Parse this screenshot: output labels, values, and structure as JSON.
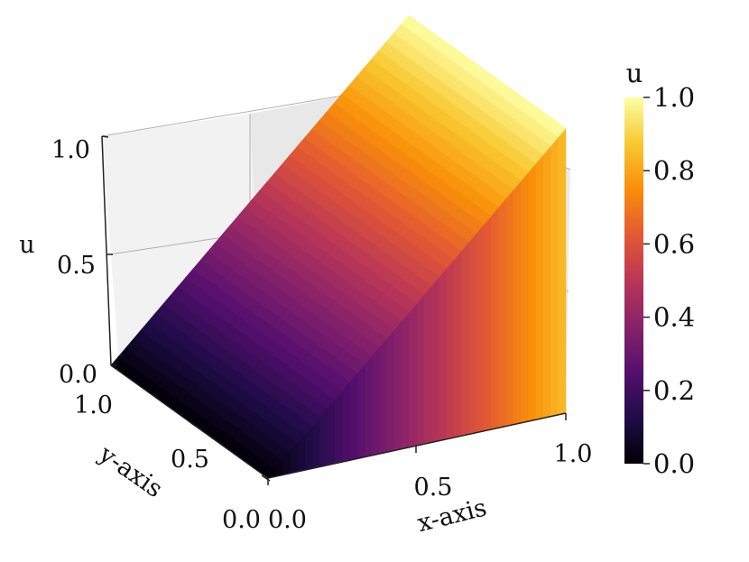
{
  "chart_data": {
    "type": "surface3d",
    "title": "",
    "xlabel": "x-axis",
    "ylabel": "y-axis",
    "zlabel": "u",
    "xlim": [
      0.0,
      1.0
    ],
    "ylim": [
      0.0,
      1.0
    ],
    "zlim": [
      0.0,
      1.0
    ],
    "x_ticks": [
      "0.0",
      "0.5",
      "1.0"
    ],
    "y_ticks": [
      "0.0",
      "0.5",
      "1.0"
    ],
    "z_ticks": [
      "0.0",
      "0.5",
      "1.0"
    ],
    "surface": "u = x",
    "grid": true,
    "colormap": "inferno",
    "colorbar": {
      "label": "u",
      "ticks": [
        "0.0",
        "0.2",
        "0.4",
        "0.6",
        "0.8",
        "1.0"
      ],
      "range": [
        0.0,
        1.0
      ]
    },
    "colormap_stops": [
      "#000004",
      "#1f0c48",
      "#550f6d",
      "#88226a",
      "#ba3655",
      "#e35933",
      "#f98e09",
      "#f8c931",
      "#fcffa4"
    ]
  }
}
